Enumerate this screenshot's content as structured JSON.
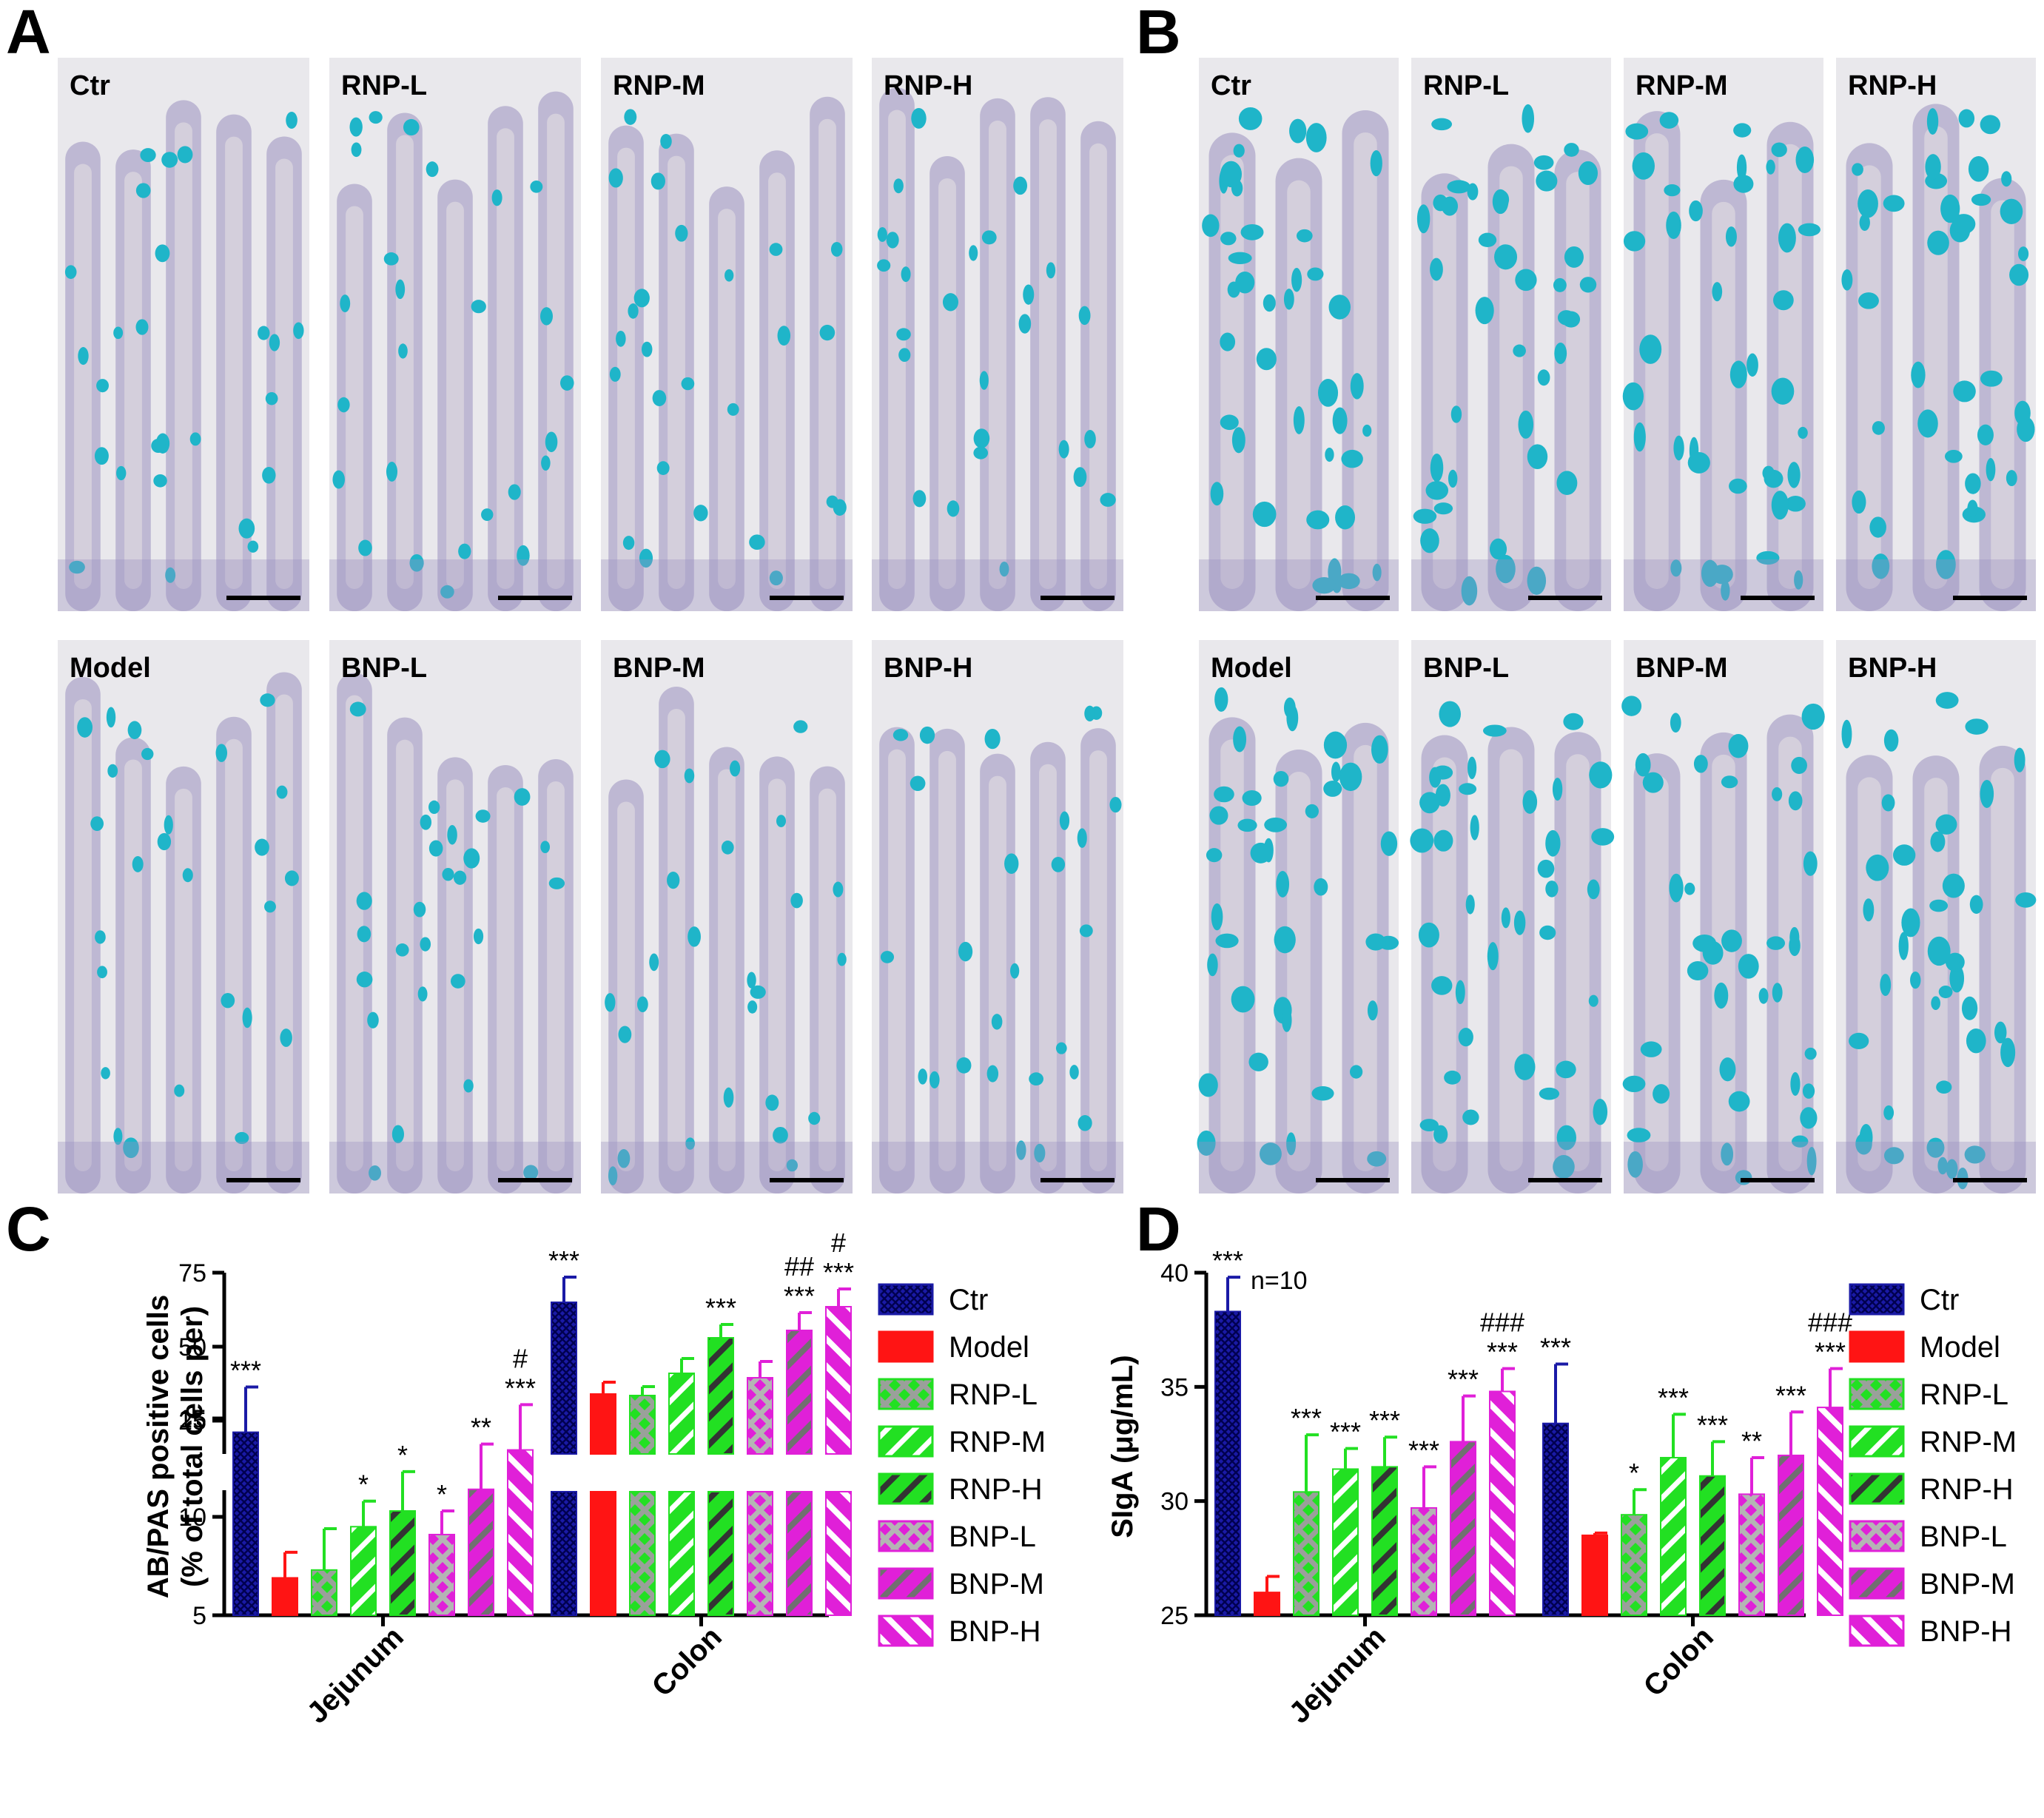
{
  "panels": [
    {
      "letter": "A"
    },
    {
      "letter": "B"
    },
    {
      "letter": "C"
    },
    {
      "letter": "D"
    }
  ],
  "micrographs": {
    "A": {
      "top": [
        "Ctr",
        "RNP-L",
        "RNP-M",
        "RNP-H"
      ],
      "bottom": [
        "Model",
        "BNP-L",
        "BNP-M",
        "BNP-H"
      ]
    },
    "B": {
      "top": [
        "Ctr",
        "RNP-L",
        "RNP-M",
        "RNP-H"
      ],
      "bottom": [
        "Model",
        "BNP-L",
        "BNP-M",
        "BNP-H"
      ]
    }
  },
  "colors": {
    "Ctr": "#1a1aa6",
    "Model": "#ff1414",
    "RNP": "#22e022",
    "BNP": "#e020d8",
    "tissue_bg": "#d9d5df",
    "stain_blue": "#1fb5c9",
    "stain_purple": "#9a8fc0"
  },
  "chart_data": [
    {
      "type": "bar",
      "panel": "C",
      "ylabel_line1": "AB/PAS positive cells",
      "ylabel_line2": "(% of total cells per)",
      "categories": [
        "Jejunum",
        "Colon"
      ],
      "axis_break": {
        "lower": [
          5,
          17
        ],
        "upper": [
          20,
          75
        ]
      },
      "lower_ticks": [
        5,
        10,
        15
      ],
      "upper_ticks": [
        25,
        50,
        75
      ],
      "series": [
        {
          "name": "Ctr",
          "values": [
            14.3,
            65
          ],
          "errors": [
            2.3,
            8.5
          ],
          "sig": [
            "***",
            "***"
          ],
          "hash": [
            "",
            ""
          ]
        },
        {
          "name": "Model",
          "values": [
            6.9,
            34
          ],
          "errors": [
            1.3,
            4
          ],
          "sig": [
            "",
            ""
          ],
          "hash": [
            "",
            ""
          ]
        },
        {
          "name": "RNP-L",
          "values": [
            7.3,
            33.5
          ],
          "errors": [
            2.1,
            3
          ],
          "sig": [
            "",
            ""
          ],
          "hash": [
            "",
            ""
          ]
        },
        {
          "name": "RNP-M",
          "values": [
            9.5,
            41
          ],
          "errors": [
            1.3,
            5
          ],
          "sig": [
            "*",
            ""
          ],
          "hash": [
            "",
            ""
          ]
        },
        {
          "name": "RNP-H",
          "values": [
            10.3,
            53
          ],
          "errors": [
            2,
            4.5
          ],
          "sig": [
            "*",
            "***"
          ],
          "hash": [
            "",
            ""
          ]
        },
        {
          "name": "BNP-L",
          "values": [
            9.1,
            39.5
          ],
          "errors": [
            1.2,
            5.5
          ],
          "sig": [
            "*",
            ""
          ],
          "hash": [
            "",
            ""
          ]
        },
        {
          "name": "BNP-M",
          "values": [
            11.4,
            55.5
          ],
          "errors": [
            2.3,
            6
          ],
          "sig": [
            "**",
            "***"
          ],
          "hash": [
            "",
            "##"
          ]
        },
        {
          "name": "BNP-H",
          "values": [
            13.4,
            63.5
          ],
          "errors": [
            2.3,
            6
          ],
          "sig": [
            "***",
            "***"
          ],
          "hash": [
            "#",
            "#"
          ]
        }
      ]
    },
    {
      "type": "bar",
      "panel": "D",
      "ylabel": "SIgA (μg/mL)",
      "annotation": "n=10",
      "categories": [
        "Jejunum",
        "Colon"
      ],
      "ylim": [
        25,
        40
      ],
      "ticks": [
        25,
        30,
        35,
        40
      ],
      "series": [
        {
          "name": "Ctr",
          "values": [
            38.3,
            33.4
          ],
          "errors": [
            1.5,
            2.6
          ],
          "sig": [
            "***",
            "***"
          ],
          "hash": [
            "",
            ""
          ]
        },
        {
          "name": "Model",
          "values": [
            26,
            28.5
          ],
          "errors": [
            0.7,
            0.1
          ],
          "sig": [
            "",
            ""
          ],
          "hash": [
            "",
            ""
          ]
        },
        {
          "name": "RNP-L",
          "values": [
            30.4,
            29.4
          ],
          "errors": [
            2.5,
            1.1
          ],
          "sig": [
            "***",
            "*"
          ],
          "hash": [
            "",
            ""
          ]
        },
        {
          "name": "RNP-M",
          "values": [
            31.4,
            31.9
          ],
          "errors": [
            0.9,
            1.9
          ],
          "sig": [
            "***",
            "***"
          ],
          "hash": [
            "",
            ""
          ]
        },
        {
          "name": "RNP-H",
          "values": [
            31.5,
            31.1
          ],
          "errors": [
            1.3,
            1.5
          ],
          "sig": [
            "***",
            "***"
          ],
          "hash": [
            "",
            ""
          ]
        },
        {
          "name": "BNP-L",
          "values": [
            29.7,
            30.3
          ],
          "errors": [
            1.8,
            1.6
          ],
          "sig": [
            "***",
            "**"
          ],
          "hash": [
            "",
            ""
          ]
        },
        {
          "name": "BNP-M",
          "values": [
            32.6,
            32
          ],
          "errors": [
            2,
            1.9
          ],
          "sig": [
            "***",
            "***"
          ],
          "hash": [
            "",
            ""
          ]
        },
        {
          "name": "BNP-H",
          "values": [
            34.8,
            34.1
          ],
          "errors": [
            1,
            1.7
          ],
          "sig": [
            "***",
            "***"
          ],
          "hash": [
            "###",
            "###"
          ]
        }
      ]
    }
  ],
  "legend": [
    "Ctr",
    "Model",
    "RNP-L",
    "RNP-M",
    "RNP-H",
    "BNP-L",
    "BNP-M",
    "BNP-H"
  ]
}
